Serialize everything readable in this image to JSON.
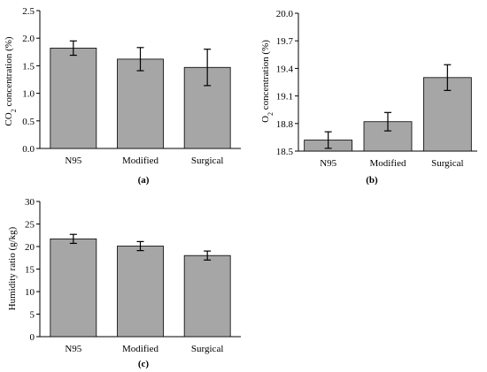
{
  "chart_data": [
    {
      "type": "bar",
      "panel_label": "(a)",
      "ylabel_parts": [
        "CO",
        "2",
        " concentration (%)"
      ],
      "categories": [
        "N95",
        "Modified",
        "Surgical"
      ],
      "values": [
        1.82,
        1.62,
        1.47
      ],
      "error": [
        0.13,
        0.21,
        0.33
      ],
      "ylim": [
        0.0,
        2.5
      ],
      "yticks": [
        "0.0",
        "0.5",
        "1.0",
        "1.5",
        "2.0",
        "2.5"
      ],
      "bar_color": "#a6a6a6",
      "grid": false
    },
    {
      "type": "bar",
      "panel_label": "(b)",
      "ylabel_parts": [
        "O",
        "2",
        " concentration (%)"
      ],
      "categories": [
        "N95",
        "Modified",
        "Surgical"
      ],
      "values": [
        18.62,
        18.82,
        19.3
      ],
      "error": [
        0.09,
        0.1,
        0.14
      ],
      "ylim": [
        18.5,
        20.0
      ],
      "yticks": [
        "18.5",
        "18.8",
        "19.1",
        "19.4",
        "19.7",
        "20.0"
      ],
      "bar_color": "#a6a6a6",
      "grid": false
    },
    {
      "type": "bar",
      "panel_label": "(c)",
      "ylabel_parts": [
        "Humidity ratio (g/kg)",
        "",
        ""
      ],
      "categories": [
        "N95",
        "Modified",
        "Surgical"
      ],
      "values": [
        21.7,
        20.1,
        18.0
      ],
      "error": [
        1.0,
        1.0,
        1.0
      ],
      "ylim": [
        0,
        30
      ],
      "yticks": [
        "0",
        "5",
        "10",
        "15",
        "20",
        "25",
        "30"
      ],
      "bar_color": "#a6a6a6",
      "grid": false
    }
  ]
}
